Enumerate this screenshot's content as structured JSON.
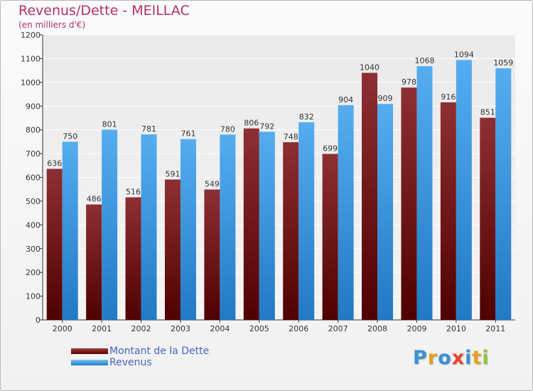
{
  "chart_data": {
    "type": "bar",
    "title": "Revenus/Dette - MEILLAC",
    "subtitle": "(en milliers d'€)",
    "categories": [
      "2000",
      "2001",
      "2002",
      "2003",
      "2004",
      "2005",
      "2006",
      "2007",
      "2008",
      "2009",
      "2010",
      "2011"
    ],
    "series": [
      {
        "name": "Montant de la Dette",
        "color": "#7a1c1c",
        "values": [
          636,
          486,
          516,
          591,
          549,
          806,
          748,
          699,
          1040,
          978,
          916,
          851
        ]
      },
      {
        "name": "Revenus",
        "color": "#3d9be6",
        "values": [
          750,
          801,
          781,
          761,
          780,
          792,
          832,
          904,
          909,
          1068,
          1094,
          1059
        ]
      }
    ],
    "ylim": [
      0,
      1200
    ],
    "yticks": [
      0,
      100,
      200,
      300,
      400,
      500,
      600,
      700,
      800,
      900,
      1000,
      1100,
      1200
    ],
    "grid": true,
    "legend_position": "bottom-left"
  },
  "logo": {
    "text": "Proxiti",
    "colors": [
      "#3a8fd6",
      "#e8a020",
      "#3a8fd6",
      "#e8452a",
      "#3a8fd6",
      "#e8a020",
      "#8dc63f"
    ]
  }
}
